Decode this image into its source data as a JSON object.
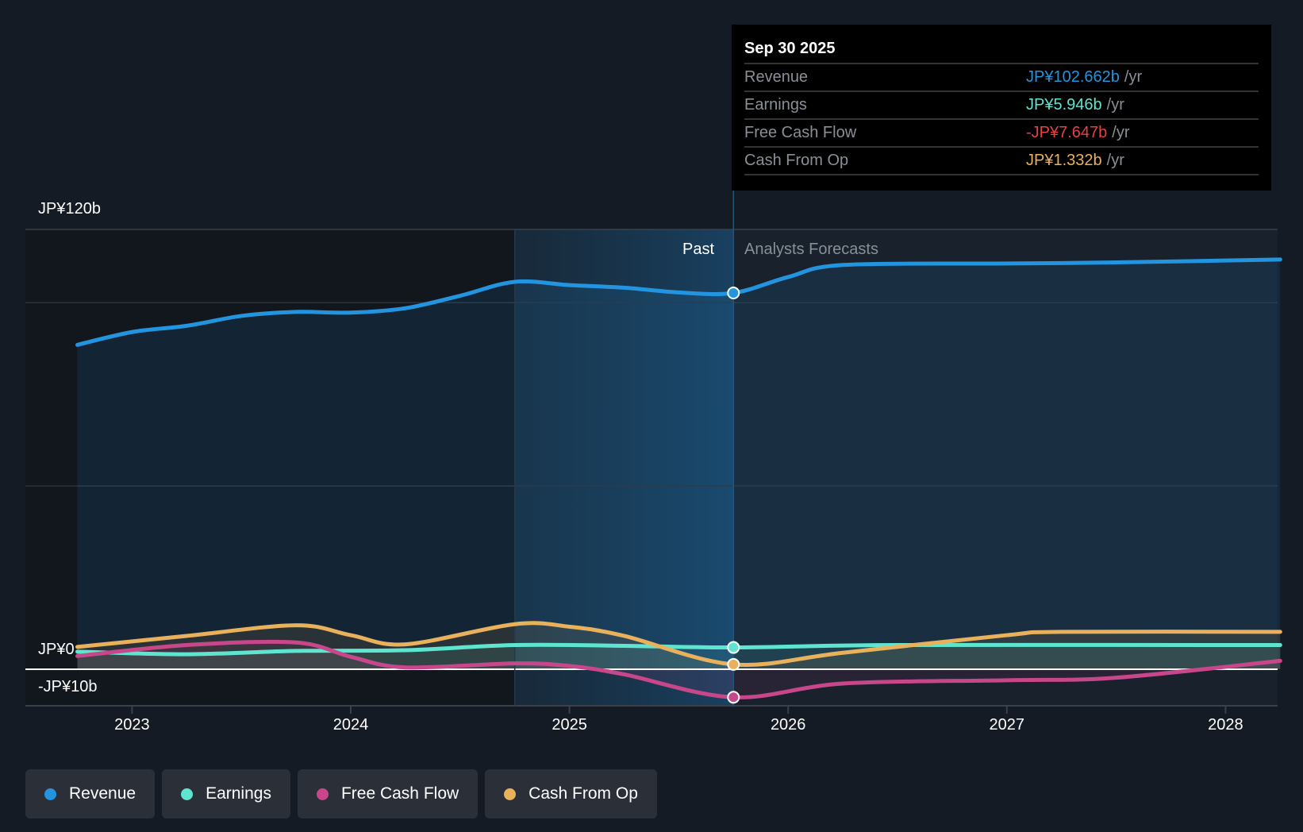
{
  "tooltip": {
    "date": "Sep 30 2025",
    "rows": [
      {
        "label": "Revenue",
        "value": "JP¥102.662b",
        "unit": "/yr",
        "color": "#2394df"
      },
      {
        "label": "Earnings",
        "value": "JP¥5.946b",
        "unit": "/yr",
        "color": "#5ee5cf"
      },
      {
        "label": "Free Cash Flow",
        "value": "-JP¥7.647b",
        "unit": "/yr",
        "color": "#e84142"
      },
      {
        "label": "Cash From Op",
        "value": "JP¥1.332b",
        "unit": "/yr",
        "color": "#e9b15c"
      }
    ]
  },
  "segments": {
    "past": "Past",
    "forecast": "Analysts Forecasts"
  },
  "chart_data": {
    "type": "line",
    "ylim": [
      -10,
      120
    ],
    "xlim": [
      2022.55,
      2028.25
    ],
    "y_ticks": [
      {
        "v": 120,
        "label": "JP¥120b"
      },
      {
        "v": 0,
        "label": "JP¥0"
      },
      {
        "v": -10,
        "label": "-JP¥10b"
      }
    ],
    "x_ticks": [
      {
        "v": 2023,
        "label": "2023"
      },
      {
        "v": 2024,
        "label": "2024"
      },
      {
        "v": 2025,
        "label": "2025"
      },
      {
        "v": 2026,
        "label": "2026"
      },
      {
        "v": 2027,
        "label": "2027"
      },
      {
        "v": 2028,
        "label": "2028"
      }
    ],
    "past_start": 2024.75,
    "now": 2025.75,
    "series": [
      {
        "name": "Revenue",
        "color": "#2394df",
        "points": [
          [
            2022.75,
            88.5
          ],
          [
            2023,
            92
          ],
          [
            2023.25,
            93.7
          ],
          [
            2023.5,
            96.4
          ],
          [
            2023.75,
            97.5
          ],
          [
            2024,
            97.3
          ],
          [
            2024.25,
            98.5
          ],
          [
            2024.5,
            101.9
          ],
          [
            2024.75,
            105.7
          ],
          [
            2025,
            104.8
          ],
          [
            2025.25,
            104.1
          ],
          [
            2025.5,
            102.8
          ],
          [
            2025.75,
            102.662
          ],
          [
            2026,
            107
          ],
          [
            2026.25,
            110.3
          ],
          [
            2027,
            110.7
          ],
          [
            2027.5,
            111
          ],
          [
            2028.25,
            111.8
          ]
        ]
      },
      {
        "name": "Earnings",
        "color": "#5ee5cf",
        "points": [
          [
            2022.75,
            4.8
          ],
          [
            2023.25,
            4.1
          ],
          [
            2023.75,
            5
          ],
          [
            2024.25,
            5.2
          ],
          [
            2024.75,
            6.6
          ],
          [
            2025.25,
            6.4
          ],
          [
            2025.75,
            5.946
          ],
          [
            2026.5,
            6.6
          ],
          [
            2028.25,
            6.6
          ]
        ]
      },
      {
        "name": "Free Cash Flow",
        "color": "#c8478a",
        "points": [
          [
            2022.75,
            3.6
          ],
          [
            2023.25,
            6.6
          ],
          [
            2023.75,
            7.3
          ],
          [
            2024,
            3.4
          ],
          [
            2024.25,
            0.5
          ],
          [
            2024.75,
            1.6
          ],
          [
            2025,
            0.9
          ],
          [
            2025.25,
            -1.4
          ],
          [
            2025.75,
            -7.647
          ],
          [
            2026.25,
            -3.9
          ],
          [
            2027,
            -3
          ],
          [
            2027.5,
            -2.3
          ],
          [
            2028.25,
            2.3
          ]
        ]
      },
      {
        "name": "Cash From Op",
        "color": "#e9b15c",
        "points": [
          [
            2022.75,
            6.1
          ],
          [
            2023.25,
            9.1
          ],
          [
            2023.75,
            12
          ],
          [
            2024,
            9.3
          ],
          [
            2024.25,
            6.8
          ],
          [
            2024.75,
            12.3
          ],
          [
            2025,
            11.6
          ],
          [
            2025.25,
            9.1
          ],
          [
            2025.75,
            1.332
          ],
          [
            2026.25,
            4.5
          ],
          [
            2027,
            9.3
          ],
          [
            2027.25,
            10.2
          ],
          [
            2028.25,
            10.2
          ]
        ]
      }
    ]
  }
}
